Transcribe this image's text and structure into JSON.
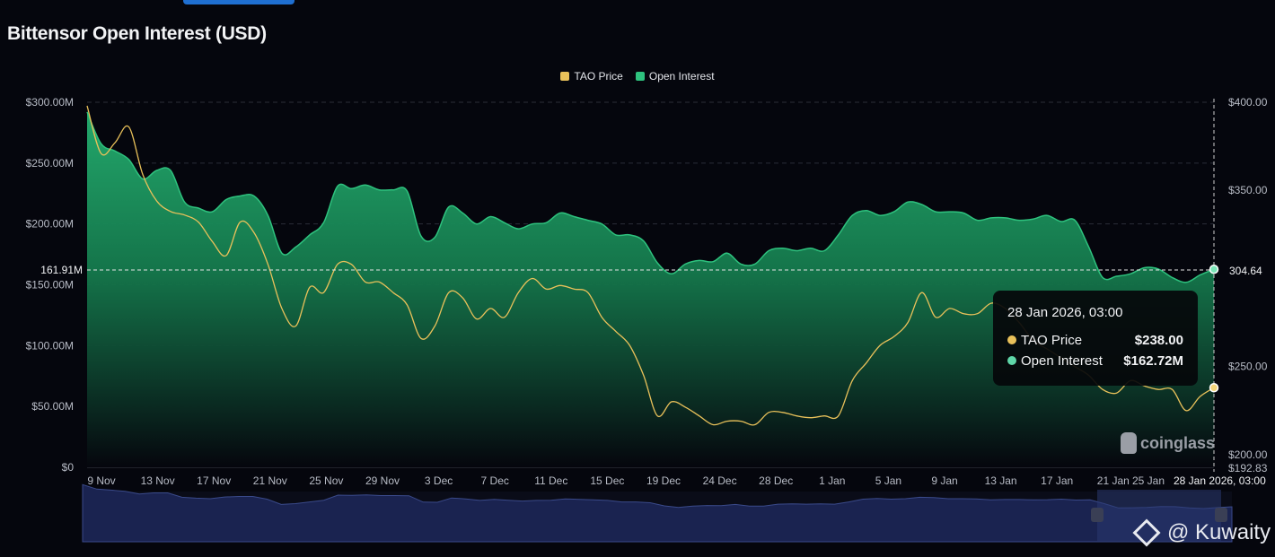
{
  "title": "Bittensor Open Interest (USD)",
  "colors": {
    "price": "#e9c15a",
    "oi": "#2ec27e",
    "background": "#05060d",
    "navigator": "#3a4a8a"
  },
  "tooltip": {
    "date": "28 Jan 2026, 03:00",
    "price_label": "TAO Price",
    "price_value": "$238.00",
    "oi_label": "Open Interest",
    "oi_value": "$162.72M"
  },
  "crosshair": {
    "left_label": "161.91M",
    "right_label": "304.64",
    "x_label": "28 Jan 2026, 03:00"
  },
  "watermark": "coinglass",
  "credit": "@ Kuwaity",
  "chart_data": {
    "type": "line",
    "title": "Bittensor Open Interest (USD)",
    "legend": [
      "TAO Price",
      "Open Interest"
    ],
    "legend_position": "top-center",
    "left_axis": {
      "ticks": [
        "$0",
        "$50.00M",
        "$100.00M",
        "$150.00M",
        "$200.00M",
        "$250.00M",
        "$300.00M"
      ],
      "range": [
        0,
        300
      ],
      "unit": "M USD"
    },
    "right_axis": {
      "ticks": [
        "$192.83",
        "$200.00",
        "$250.00",
        "$350.00",
        "$400.00"
      ],
      "tick_values": [
        192.83,
        200,
        250,
        350,
        400
      ],
      "range": [
        192.83,
        400
      ]
    },
    "x_ticks": [
      "9 Nov",
      "13 Nov",
      "17 Nov",
      "21 Nov",
      "25 Nov",
      "29 Nov",
      "3 Dec",
      "7 Dec",
      "11 Dec",
      "15 Dec",
      "19 Dec",
      "24 Dec",
      "28 Dec",
      "1 Jan",
      "5 Jan",
      "9 Jan",
      "13 Jan",
      "17 Jan",
      "21 Jan",
      "25 Jan"
    ],
    "x_range_days": [
      0,
      81
    ],
    "x_start": "8 Nov 2025",
    "grid": true,
    "series": [
      {
        "name": "Open Interest",
        "axis": "left",
        "values": [
          292,
          266,
          260,
          253,
          237,
          244,
          244,
          218,
          213,
          210,
          220,
          223,
          223,
          207,
          176,
          181,
          191,
          201,
          231,
          229,
          232,
          228,
          228,
          227,
          190,
          189,
          214,
          209,
          200,
          206,
          201,
          196,
          200,
          201,
          209,
          206,
          203,
          200,
          191,
          191,
          186,
          168,
          159,
          167,
          170,
          169,
          176,
          167,
          167,
          178,
          180,
          178,
          180,
          178,
          191,
          207,
          211,
          207,
          210,
          218,
          216,
          210,
          210,
          209,
          203,
          205,
          205,
          203,
          204,
          207,
          202,
          203,
          181,
          156,
          157,
          159,
          164,
          163,
          156,
          152,
          158,
          162.72
        ]
      },
      {
        "name": "TAO Price",
        "axis": "right",
        "values": [
          398,
          371,
          377,
          386,
          359,
          344,
          338,
          336,
          332,
          321,
          313,
          332,
          326,
          308,
          283,
          273,
          295,
          292,
          308,
          308,
          298,
          298,
          292,
          285,
          266,
          273,
          292,
          289,
          277,
          283,
          278,
          292,
          300,
          294,
          296,
          294,
          292,
          278,
          270,
          262,
          245,
          222,
          230,
          227,
          222,
          217,
          219,
          219,
          217,
          224,
          224,
          222,
          221,
          222,
          222,
          242,
          252,
          262,
          267,
          275,
          292,
          278,
          283,
          280,
          280,
          286,
          283,
          275,
          265,
          260,
          255,
          250,
          245,
          237,
          235,
          242,
          239,
          237,
          237,
          225,
          233,
          238
        ]
      }
    ]
  }
}
